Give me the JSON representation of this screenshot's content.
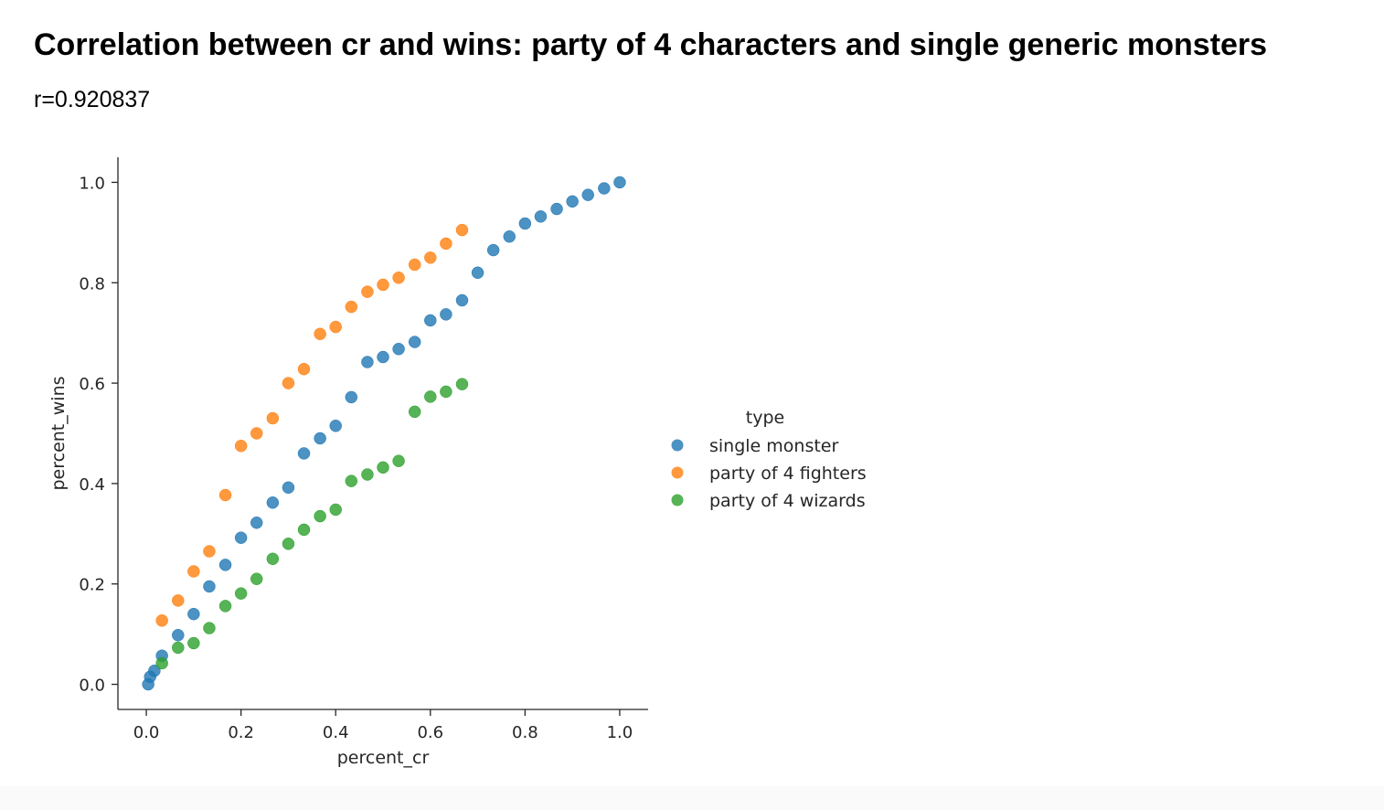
{
  "page": {
    "title": "Correlation between cr and wins: party of 4 characters and single generic monsters",
    "subtitle": "r=0.920837"
  },
  "chart_data": {
    "type": "scatter",
    "xlabel": "percent_cr",
    "ylabel": "percent_wins",
    "xlim": [
      -0.06,
      1.06
    ],
    "ylim": [
      -0.05,
      1.05
    ],
    "xticks": [
      0.0,
      0.2,
      0.4,
      0.6,
      0.8,
      1.0
    ],
    "yticks": [
      0.0,
      0.2,
      0.4,
      0.6,
      0.8,
      1.0
    ],
    "xtick_labels": [
      "0.0",
      "0.2",
      "0.4",
      "0.6",
      "0.8",
      "1.0"
    ],
    "ytick_labels": [
      "0.0",
      "0.2",
      "0.4",
      "0.6",
      "0.8",
      "1.0"
    ],
    "grid": false,
    "legend": {
      "title": "type",
      "placement": "right"
    },
    "series": [
      {
        "name": "single monster",
        "color": "#1f77b4",
        "points": [
          [
            0.004,
            0.0
          ],
          [
            0.008,
            0.015
          ],
          [
            0.017,
            0.027
          ],
          [
            0.033,
            0.057
          ],
          [
            0.067,
            0.098
          ],
          [
            0.1,
            0.14
          ],
          [
            0.133,
            0.195
          ],
          [
            0.167,
            0.238
          ],
          [
            0.2,
            0.292
          ],
          [
            0.233,
            0.322
          ],
          [
            0.267,
            0.362
          ],
          [
            0.3,
            0.392
          ],
          [
            0.333,
            0.46
          ],
          [
            0.367,
            0.49
          ],
          [
            0.4,
            0.515
          ],
          [
            0.433,
            0.572
          ],
          [
            0.467,
            0.642
          ],
          [
            0.5,
            0.652
          ],
          [
            0.533,
            0.668
          ],
          [
            0.567,
            0.682
          ],
          [
            0.6,
            0.725
          ],
          [
            0.633,
            0.737
          ],
          [
            0.667,
            0.765
          ],
          [
            0.7,
            0.82
          ],
          [
            0.733,
            0.865
          ],
          [
            0.767,
            0.892
          ],
          [
            0.8,
            0.918
          ],
          [
            0.833,
            0.932
          ],
          [
            0.867,
            0.947
          ],
          [
            0.9,
            0.962
          ],
          [
            0.933,
            0.975
          ],
          [
            0.967,
            0.988
          ],
          [
            1.0,
            1.0
          ]
        ]
      },
      {
        "name": "party of 4 fighters",
        "color": "#ff7f0e",
        "points": [
          [
            0.033,
            0.127
          ],
          [
            0.067,
            0.167
          ],
          [
            0.1,
            0.225
          ],
          [
            0.133,
            0.265
          ],
          [
            0.167,
            0.377
          ],
          [
            0.2,
            0.475
          ],
          [
            0.233,
            0.5
          ],
          [
            0.267,
            0.53
          ],
          [
            0.3,
            0.6
          ],
          [
            0.333,
            0.628
          ],
          [
            0.367,
            0.698
          ],
          [
            0.4,
            0.712
          ],
          [
            0.433,
            0.752
          ],
          [
            0.467,
            0.782
          ],
          [
            0.5,
            0.796
          ],
          [
            0.533,
            0.81
          ],
          [
            0.567,
            0.836
          ],
          [
            0.6,
            0.85
          ],
          [
            0.633,
            0.878
          ],
          [
            0.667,
            0.905
          ]
        ]
      },
      {
        "name": "party of 4 wizards",
        "color": "#2ca02c",
        "points": [
          [
            0.033,
            0.042
          ],
          [
            0.067,
            0.073
          ],
          [
            0.1,
            0.082
          ],
          [
            0.133,
            0.112
          ],
          [
            0.167,
            0.156
          ],
          [
            0.2,
            0.181
          ],
          [
            0.233,
            0.21
          ],
          [
            0.267,
            0.25
          ],
          [
            0.3,
            0.28
          ],
          [
            0.333,
            0.308
          ],
          [
            0.367,
            0.335
          ],
          [
            0.4,
            0.348
          ],
          [
            0.433,
            0.405
          ],
          [
            0.467,
            0.418
          ],
          [
            0.5,
            0.432
          ],
          [
            0.533,
            0.445
          ],
          [
            0.567,
            0.543
          ],
          [
            0.6,
            0.573
          ],
          [
            0.633,
            0.583
          ],
          [
            0.667,
            0.598
          ]
        ]
      }
    ]
  }
}
